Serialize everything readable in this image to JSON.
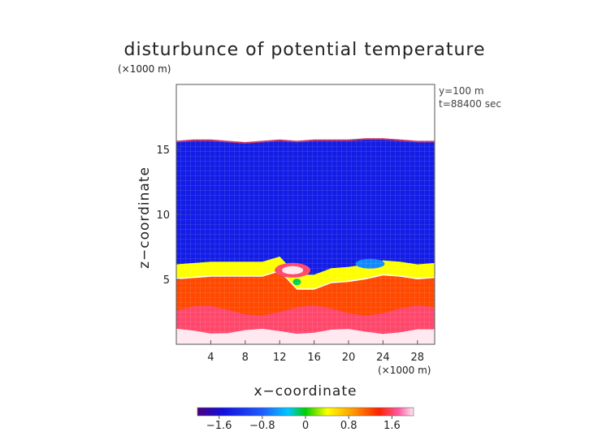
{
  "chart_data": {
    "type": "heatmap",
    "title": "disturbunce of potential temperature",
    "axis_unit_top": "(×1000 m)",
    "axis_unit_bottom": "(×1000 m)",
    "xlabel": "x−coordinate",
    "ylabel": "z−coordinate",
    "annotations": [
      "y=100 m",
      "t=88400 sec"
    ],
    "x_ticks": [
      "4",
      "8",
      "12",
      "16",
      "20",
      "24",
      "28"
    ],
    "x_tick_values": [
      4,
      8,
      12,
      16,
      20,
      24,
      28
    ],
    "y_ticks": [
      "5",
      "10",
      "15"
    ],
    "y_tick_values": [
      5,
      10,
      15
    ],
    "xlim": [
      0,
      30
    ],
    "ylim": [
      0,
      20
    ],
    "colorbar": {
      "range": [
        -2.0,
        2.0
      ],
      "ticks": [
        "−1.6",
        "−0.8",
        "0",
        "0.8",
        "1.6"
      ],
      "tick_values": [
        -1.6,
        -0.8,
        0,
        0.8,
        1.6
      ]
    },
    "data_top_z": [
      15.6,
      15.7,
      15.7,
      15.6,
      15.5,
      15.6,
      15.7,
      15.6,
      15.7,
      15.7,
      15.7,
      15.8,
      15.8,
      15.7,
      15.6,
      15.6
    ],
    "data_top_x": [
      0,
      2,
      4,
      6,
      8,
      10,
      12,
      14,
      16,
      18,
      20,
      22,
      24,
      26,
      28,
      30
    ],
    "inversion_base_z": [
      5.8,
      5.9,
      6.0,
      6.0,
      6.0,
      6.0,
      6.4,
      5.0,
      5.0,
      5.5,
      5.6,
      5.8,
      6.1,
      6.0,
      5.8,
      5.9
    ],
    "features": {
      "upper_layer_value": -1.4,
      "lower_layer_value": 1.2,
      "surface_value": 2.0,
      "warm_bubble": {
        "x": 13.5,
        "z": 5.7,
        "value": 2.0
      },
      "cool_pocket": {
        "x": 22.5,
        "z": 6.2,
        "value": -0.6
      },
      "green_spot": {
        "x": 14.0,
        "z": 4.8,
        "value": -0.1
      }
    }
  }
}
